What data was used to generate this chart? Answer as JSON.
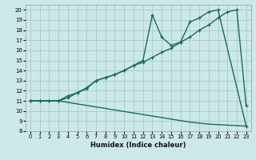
{
  "xlabel": "Humidex (Indice chaleur)",
  "bg_color": "#cce8e8",
  "grid_color": "#aacece",
  "line_color": "#1a6b5a",
  "xlim": [
    -0.5,
    23.5
  ],
  "ylim": [
    8,
    20.5
  ],
  "yticks": [
    8,
    9,
    10,
    11,
    12,
    13,
    14,
    15,
    16,
    17,
    18,
    19,
    20
  ],
  "xticks": [
    0,
    1,
    2,
    3,
    4,
    5,
    6,
    7,
    8,
    9,
    10,
    11,
    12,
    13,
    14,
    15,
    16,
    17,
    18,
    19,
    20,
    21,
    22,
    23
  ],
  "line1_x": [
    0,
    1,
    2,
    3,
    4,
    5,
    6,
    7,
    8,
    9,
    10,
    11,
    12,
    13,
    14,
    15,
    16,
    17,
    18,
    19,
    20,
    23
  ],
  "line1_y": [
    11,
    11,
    11,
    11,
    11.3,
    11.8,
    12.3,
    13.0,
    13.3,
    13.6,
    14.0,
    14.5,
    15.0,
    19.5,
    17.3,
    16.5,
    16.8,
    18.8,
    19.2,
    19.8,
    20.0,
    8.5
  ],
  "line2_x": [
    0,
    1,
    2,
    3,
    4,
    5,
    6,
    7,
    8,
    9,
    10,
    11,
    12,
    13,
    14,
    15,
    16,
    17,
    18,
    19,
    20,
    21,
    22,
    23
  ],
  "line2_y": [
    11,
    11,
    11,
    11,
    11.5,
    11.8,
    12.2,
    13.0,
    13.3,
    13.6,
    14.0,
    14.5,
    14.8,
    15.3,
    15.8,
    16.2,
    16.8,
    17.3,
    18.0,
    18.5,
    19.2,
    19.8,
    20.0,
    10.5
  ],
  "line3_x": [
    0,
    1,
    2,
    3,
    4,
    5,
    6,
    7,
    8,
    9,
    10,
    11,
    12,
    13,
    14,
    15,
    16,
    17,
    18,
    19,
    20,
    21,
    22,
    23
  ],
  "line3_y": [
    11,
    11,
    11,
    11,
    10.85,
    10.7,
    10.55,
    10.4,
    10.25,
    10.1,
    9.95,
    9.8,
    9.65,
    9.5,
    9.35,
    9.2,
    9.05,
    8.9,
    8.8,
    8.7,
    8.65,
    8.6,
    8.55,
    8.5
  ]
}
